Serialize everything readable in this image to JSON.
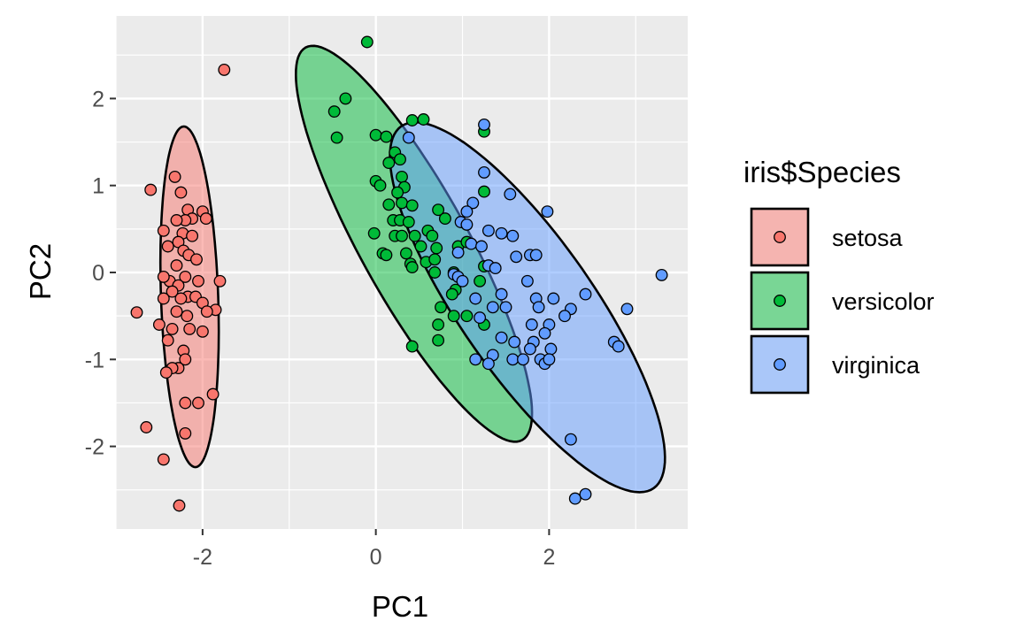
{
  "chart_data": {
    "type": "scatter",
    "xlabel": "PC1",
    "ylabel": "PC2",
    "xlim": [
      -3.0,
      3.6
    ],
    "ylim": [
      -2.95,
      2.95
    ],
    "x_ticks": [
      -2,
      0,
      2
    ],
    "x_tick_labels": [
      "-2",
      "0",
      "2"
    ],
    "y_ticks": [
      -2,
      -1,
      0,
      1,
      2
    ],
    "y_tick_labels": [
      "-2",
      "-1",
      "0",
      "1",
      "2"
    ],
    "grid": true,
    "legend": {
      "title": "iris$Species",
      "placement": "right",
      "entries": [
        "setosa",
        "versicolor",
        "virginica"
      ]
    },
    "colors": {
      "setosa": "#f8766d",
      "versicolor": "#00ba38",
      "virginica": "#619cff",
      "panel_background": "#ebebeb",
      "grid": "#ffffff"
    },
    "ellipses": [
      {
        "series": "setosa",
        "cx": -2.15,
        "cy": -0.28,
        "rx": 1.96,
        "ry": 0.33,
        "angle": 92
      },
      {
        "series": "versicolor",
        "cx": 0.44,
        "cy": 0.33,
        "rx": 2.58,
        "ry": 0.62,
        "angle": 119
      },
      {
        "series": "virginica",
        "cx": 1.75,
        "cy": -0.4,
        "rx": 2.54,
        "ry": 0.77,
        "angle": 125
      }
    ],
    "series": [
      {
        "name": "setosa",
        "points": [
          [
            -1.75,
            2.33
          ],
          [
            -2.32,
            1.1
          ],
          [
            -2.25,
            0.92
          ],
          [
            -2.6,
            0.95
          ],
          [
            -2.17,
            0.72
          ],
          [
            -2.0,
            0.7
          ],
          [
            -2.12,
            0.62
          ],
          [
            -2.2,
            0.6
          ],
          [
            -1.96,
            0.62
          ],
          [
            -2.3,
            0.6
          ],
          [
            -2.45,
            0.48
          ],
          [
            -2.23,
            0.45
          ],
          [
            -2.12,
            0.42
          ],
          [
            -2.28,
            0.35
          ],
          [
            -2.4,
            0.3
          ],
          [
            -2.22,
            0.25
          ],
          [
            -2.16,
            0.2
          ],
          [
            -2.07,
            0.15
          ],
          [
            -2.3,
            0.08
          ],
          [
            -2.38,
            -0.1
          ],
          [
            -2.2,
            -0.05
          ],
          [
            -2.45,
            -0.05
          ],
          [
            -2.05,
            -0.1
          ],
          [
            -1.8,
            -0.1
          ],
          [
            -2.28,
            -0.15
          ],
          [
            -2.35,
            -0.22
          ],
          [
            -2.17,
            -0.28
          ],
          [
            -2.08,
            -0.28
          ],
          [
            -2.25,
            -0.3
          ],
          [
            -2.45,
            -0.3
          ],
          [
            -2.0,
            -0.35
          ],
          [
            -2.3,
            -0.45
          ],
          [
            -1.85,
            -0.43
          ],
          [
            -1.95,
            -0.45
          ],
          [
            -2.18,
            -0.5
          ],
          [
            -2.76,
            -0.46
          ],
          [
            -2.5,
            -0.6
          ],
          [
            -2.35,
            -0.65
          ],
          [
            -2.15,
            -0.65
          ],
          [
            -2.4,
            -0.78
          ],
          [
            -2.0,
            -0.68
          ],
          [
            -2.22,
            -0.9
          ],
          [
            -2.2,
            -1.0
          ],
          [
            -2.28,
            -1.1
          ],
          [
            -2.35,
            -1.1
          ],
          [
            -2.42,
            -1.15
          ],
          [
            -2.2,
            -1.5
          ],
          [
            -2.05,
            -1.5
          ],
          [
            -1.88,
            -1.4
          ],
          [
            -2.65,
            -1.78
          ],
          [
            -2.2,
            -1.85
          ],
          [
            -2.45,
            -2.15
          ],
          [
            -2.27,
            -2.68
          ]
        ]
      },
      {
        "name": "versicolor",
        "points": [
          [
            -0.1,
            2.65
          ],
          [
            -0.35,
            2.0
          ],
          [
            -0.48,
            1.85
          ],
          [
            -0.45,
            1.55
          ],
          [
            0.0,
            1.58
          ],
          [
            0.12,
            1.56
          ],
          [
            0.42,
            1.75
          ],
          [
            0.55,
            1.76
          ],
          [
            0.22,
            1.38
          ],
          [
            0.28,
            1.3
          ],
          [
            0.15,
            1.26
          ],
          [
            0.3,
            1.1
          ],
          [
            0.0,
            1.05
          ],
          [
            0.05,
            1.0
          ],
          [
            0.33,
            0.98
          ],
          [
            0.25,
            0.92
          ],
          [
            1.25,
            0.93
          ],
          [
            0.3,
            0.8
          ],
          [
            0.15,
            0.78
          ],
          [
            0.42,
            0.77
          ],
          [
            0.2,
            0.6
          ],
          [
            0.28,
            0.6
          ],
          [
            0.72,
            0.72
          ],
          [
            0.8,
            0.62
          ],
          [
            0.38,
            0.58
          ],
          [
            0.6,
            0.48
          ],
          [
            -0.02,
            0.45
          ],
          [
            0.22,
            0.42
          ],
          [
            0.3,
            0.42
          ],
          [
            0.45,
            0.42
          ],
          [
            0.65,
            0.42
          ],
          [
            0.7,
            0.28
          ],
          [
            0.52,
            0.3
          ],
          [
            0.35,
            0.22
          ],
          [
            0.08,
            0.22
          ],
          [
            0.12,
            0.2
          ],
          [
            0.4,
            0.1
          ],
          [
            0.58,
            0.12
          ],
          [
            0.68,
            0.15
          ],
          [
            0.42,
            0.06
          ],
          [
            0.95,
            0.3
          ],
          [
            1.25,
            0.07
          ],
          [
            0.9,
            0.0
          ],
          [
            0.68,
            0.0
          ],
          [
            0.92,
            -0.2
          ],
          [
            0.88,
            -0.25
          ],
          [
            0.75,
            -0.4
          ],
          [
            0.9,
            -0.5
          ],
          [
            1.05,
            -0.5
          ],
          [
            1.25,
            -0.6
          ],
          [
            0.72,
            -0.6
          ],
          [
            0.72,
            -0.78
          ],
          [
            0.42,
            -0.85
          ],
          [
            1.25,
            1.62
          ],
          [
            1.05,
            0.35
          ],
          [
            1.2,
            -0.1
          ]
        ]
      },
      {
        "name": "virginica",
        "points": [
          [
            1.25,
            1.7
          ],
          [
            0.38,
            1.55
          ],
          [
            1.25,
            1.15
          ],
          [
            1.55,
            0.9
          ],
          [
            1.12,
            0.8
          ],
          [
            1.05,
            0.7
          ],
          [
            1.98,
            0.7
          ],
          [
            0.98,
            0.58
          ],
          [
            1.05,
            0.55
          ],
          [
            1.3,
            0.48
          ],
          [
            1.45,
            0.45
          ],
          [
            1.58,
            0.42
          ],
          [
            1.1,
            0.33
          ],
          [
            1.22,
            0.3
          ],
          [
            0.95,
            0.23
          ],
          [
            1.78,
            0.2
          ],
          [
            1.85,
            0.2
          ],
          [
            1.62,
            0.18
          ],
          [
            1.3,
            0.08
          ],
          [
            1.38,
            0.05
          ],
          [
            0.9,
            -0.02
          ],
          [
            0.95,
            -0.05
          ],
          [
            3.3,
            -0.03
          ],
          [
            1.0,
            -0.1
          ],
          [
            1.45,
            -0.25
          ],
          [
            2.42,
            -0.25
          ],
          [
            1.15,
            -0.3
          ],
          [
            1.85,
            -0.3
          ],
          [
            2.05,
            -0.3
          ],
          [
            1.5,
            -0.4
          ],
          [
            1.88,
            -0.4
          ],
          [
            2.25,
            -0.42
          ],
          [
            2.9,
            -0.42
          ],
          [
            1.2,
            -0.52
          ],
          [
            1.8,
            -0.6
          ],
          [
            2.0,
            -0.6
          ],
          [
            1.95,
            -0.7
          ],
          [
            1.82,
            -0.8
          ],
          [
            2.75,
            -0.8
          ],
          [
            2.8,
            -0.85
          ],
          [
            1.45,
            -0.75
          ],
          [
            1.6,
            -0.8
          ],
          [
            1.78,
            -0.88
          ],
          [
            2.02,
            -0.88
          ],
          [
            1.35,
            -0.95
          ],
          [
            1.58,
            -1.0
          ],
          [
            1.3,
            -1.05
          ],
          [
            1.7,
            -1.0
          ],
          [
            1.9,
            -1.0
          ],
          [
            1.95,
            -1.05
          ],
          [
            2.0,
            -1.0
          ],
          [
            1.15,
            -1.0
          ],
          [
            2.25,
            -1.92
          ],
          [
            2.3,
            -2.6
          ],
          [
            2.42,
            -2.55
          ],
          [
            1.35,
            -0.4
          ],
          [
            1.75,
            -0.1
          ],
          [
            2.18,
            -0.5
          ]
        ]
      }
    ]
  }
}
